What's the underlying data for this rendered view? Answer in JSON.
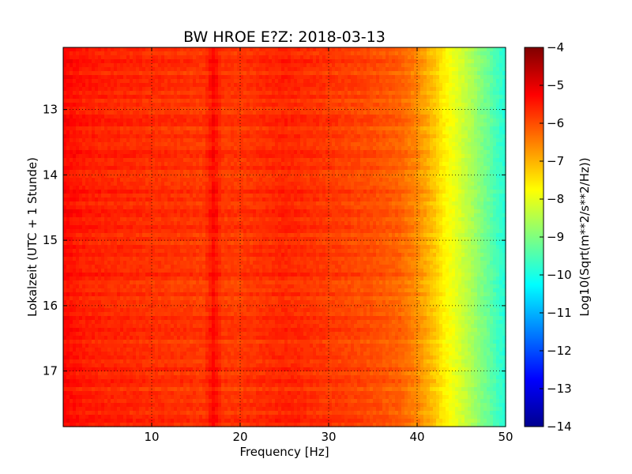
{
  "chart_data": {
    "type": "heatmap",
    "title": "BW HROE E?Z: 2018-03-13",
    "xlabel": "Frequency [Hz]",
    "ylabel": "Lokalzeit (UTC + 1 Stunde)",
    "xlim": [
      0,
      50
    ],
    "ylim": [
      17.85,
      12.05
    ],
    "x_ticks": [
      10,
      20,
      30,
      40,
      50
    ],
    "y_ticks": [
      13,
      14,
      15,
      16,
      17
    ],
    "grid": true,
    "colormap": "jet",
    "colorbar": {
      "label": "Log10(Sqrt(m**2/s**2/Hz))",
      "range": [
        -14,
        -4
      ],
      "ticks": [
        -4,
        -5,
        -6,
        -7,
        -8,
        -9,
        -10,
        -11,
        -12,
        -13,
        -14
      ]
    },
    "spectrum_profile": {
      "frequency_hz": [
        0,
        2,
        5,
        10,
        16,
        17,
        18,
        20,
        25,
        30,
        35,
        38,
        40,
        41,
        42,
        43,
        44,
        45,
        46,
        47,
        48,
        49,
        50
      ],
      "log10_amplitude": [
        -5.3,
        -5.5,
        -5.6,
        -5.7,
        -5.8,
        -5.3,
        -5.8,
        -5.8,
        -5.6,
        -5.8,
        -6.0,
        -6.2,
        -6.6,
        -6.9,
        -7.2,
        -7.6,
        -7.9,
        -8.2,
        -8.5,
        -8.9,
        -9.2,
        -9.6,
        -9.9
      ]
    }
  }
}
